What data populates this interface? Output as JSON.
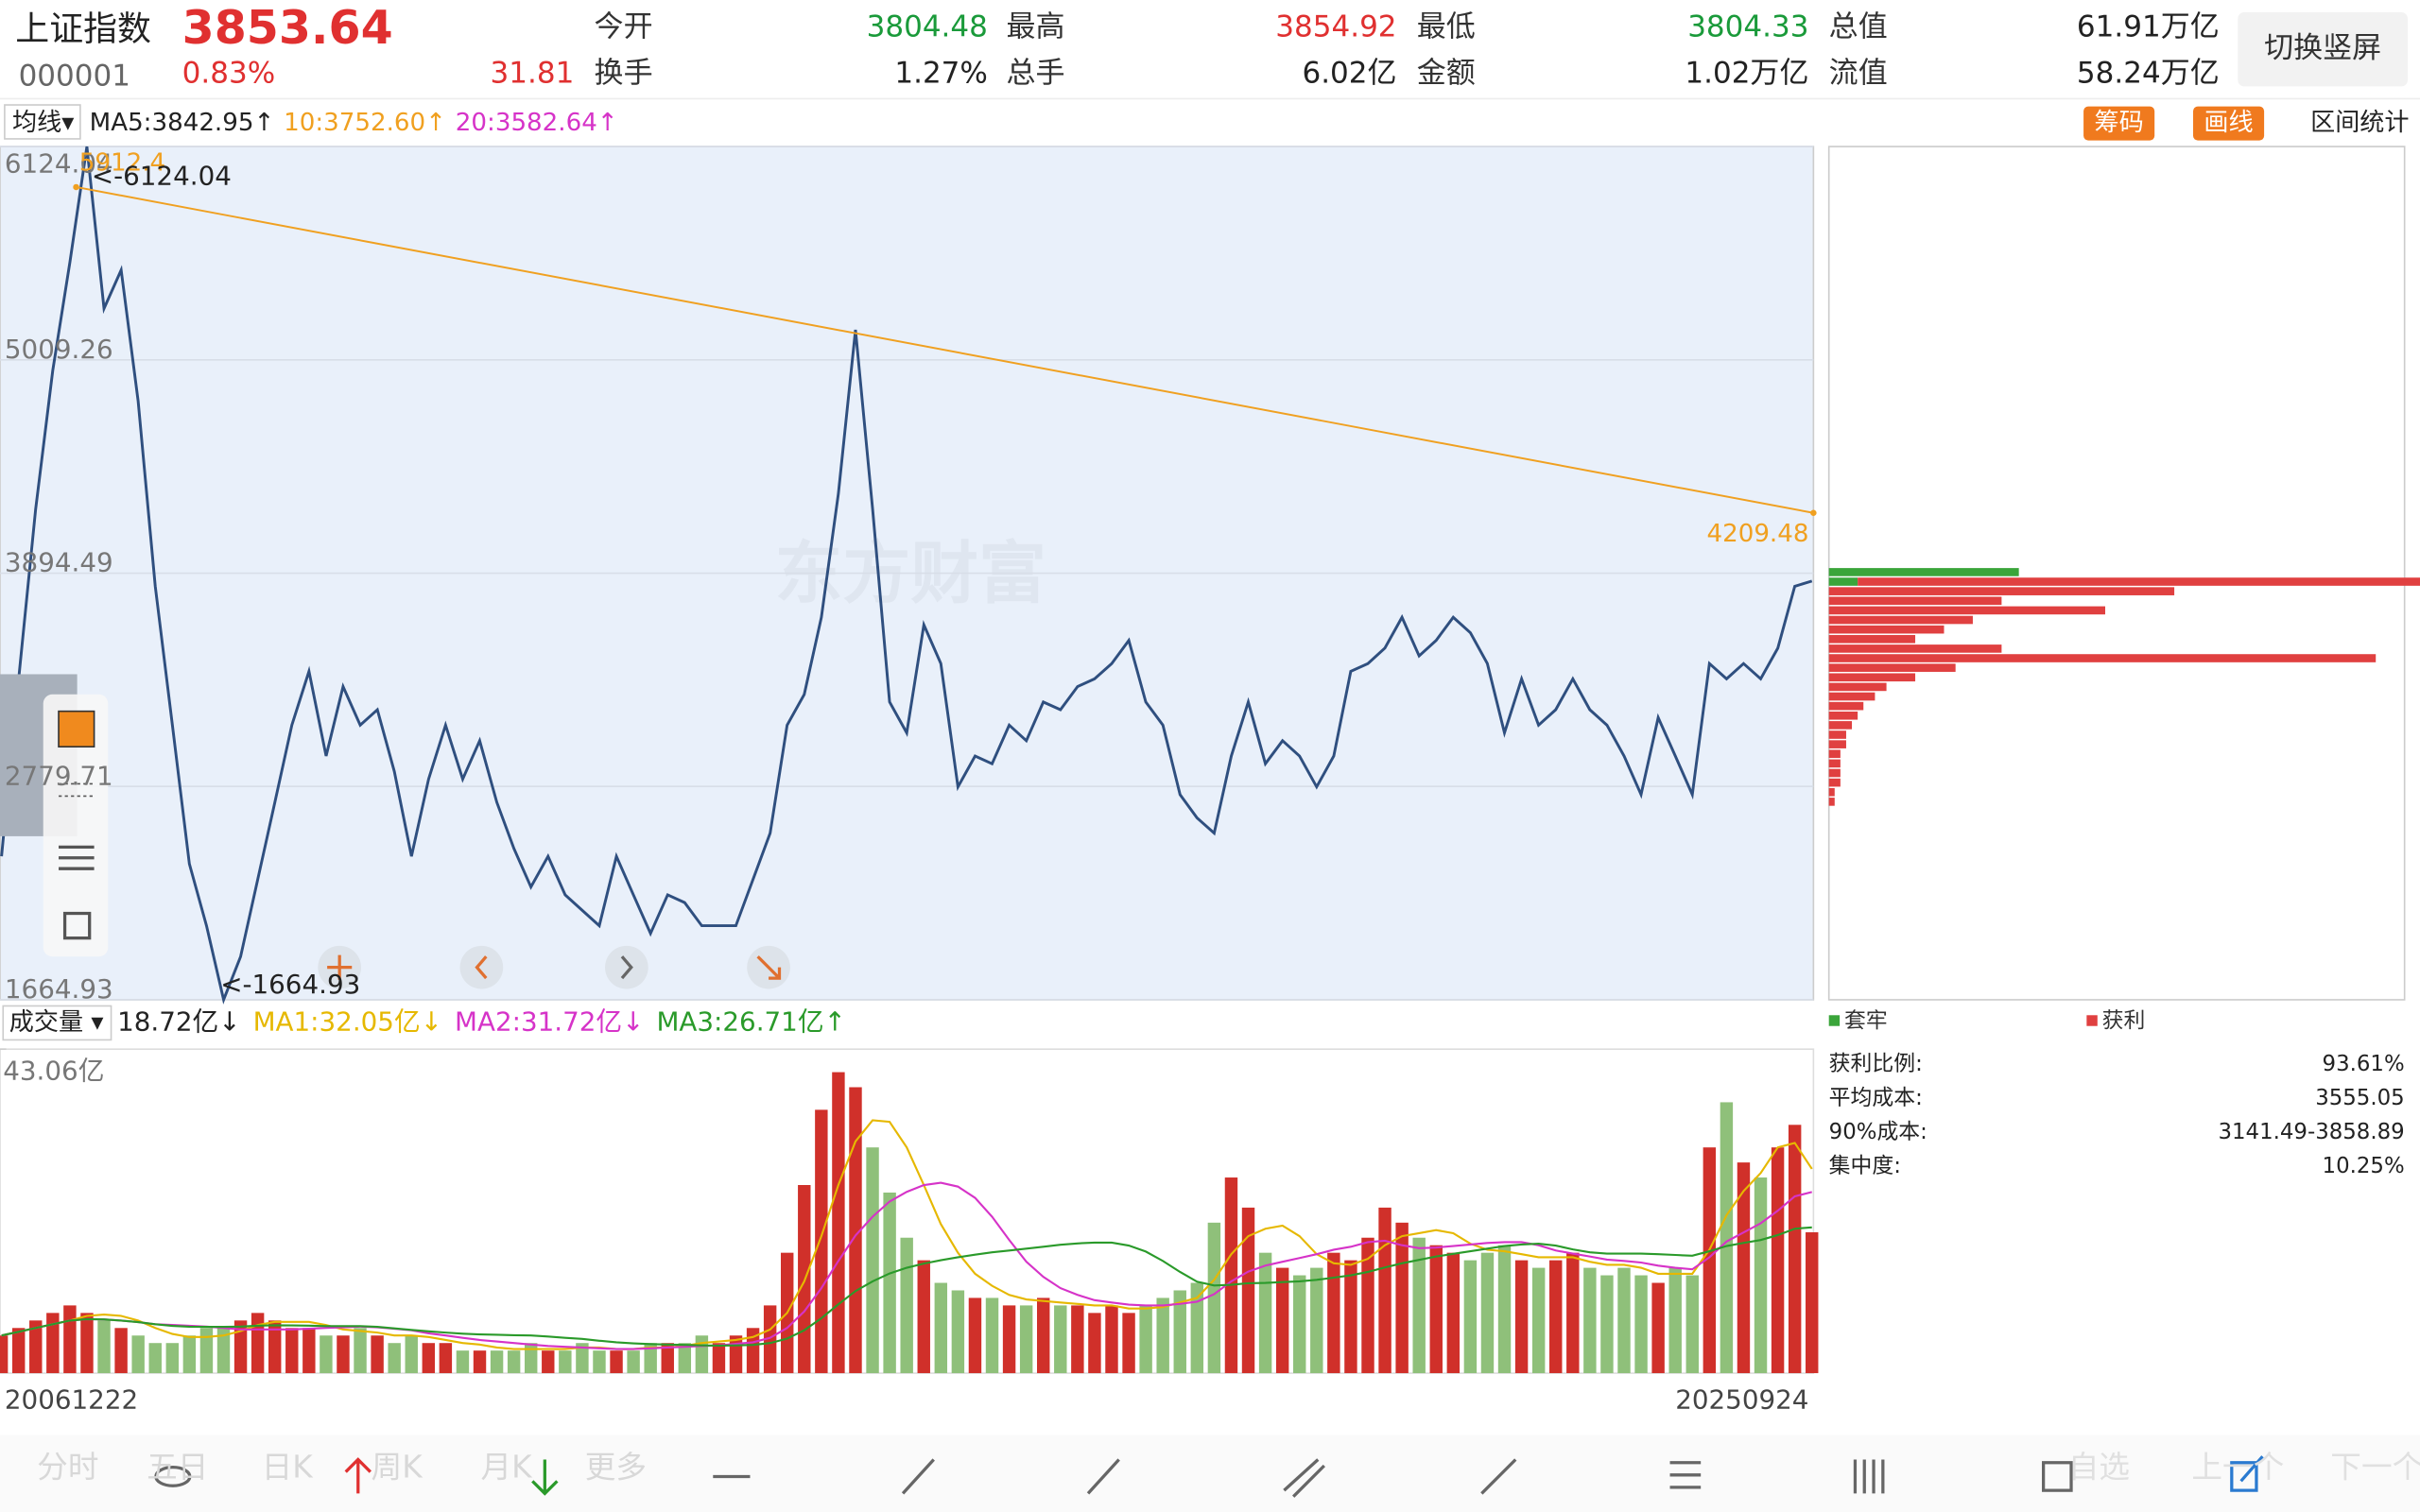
{
  "header": {
    "name": "上证指数",
    "price": "3853.64",
    "code": "000001",
    "change_pct": "0.83%",
    "change": "31.81",
    "price_color": "#e03030",
    "stats": [
      {
        "label": "今开",
        "value": "3804.48",
        "color": "#1a9a3a"
      },
      {
        "label": "最高",
        "value": "3854.92",
        "color": "#e03030"
      },
      {
        "label": "最低",
        "value": "3804.33",
        "color": "#1a9a3a"
      },
      {
        "label": "总值",
        "value": "61.91万亿",
        "color": "#222222"
      },
      {
        "label": "换手",
        "value": "1.27%",
        "color": "#222222"
      },
      {
        "label": "总手",
        "value": "6.02亿",
        "color": "#222222"
      },
      {
        "label": "金额",
        "value": "1.02万亿",
        "color": "#222222"
      },
      {
        "label": "流值",
        "value": "58.24万亿",
        "color": "#222222"
      }
    ],
    "button": "切换竖屏"
  },
  "toolbar": {
    "ma_label": "均线▾",
    "items": [
      {
        "text": "MA5:3842.95↑",
        "color": "#222222"
      },
      {
        "text": "10:3752.60↑",
        "color": "#f0a020"
      },
      {
        "text": "20:3582.64↑",
        "color": "#d633c8"
      }
    ],
    "buttons": [
      "筹码",
      "画线"
    ],
    "stats_button": "区间统计"
  },
  "watermark": "东方财富",
  "chart_data": [
    {
      "type": "line",
      "color": "#2f4f7f",
      "fill": "#e9f0fa",
      "grid": true,
      "ylim": [
        1664.93,
        6124.04
      ],
      "yticks": [
        1664.93,
        2779.71,
        3894.49,
        5009.26,
        6124.04
      ],
      "x_labels": [
        "20061222",
        "20250924"
      ],
      "values": [
        2415,
        3342,
        4229,
        4955,
        5520,
        6124.04,
        5277,
        5479,
        4794,
        3826,
        3100,
        2375,
        2052,
        1664.93,
        1891,
        2294,
        2697,
        3100,
        3382,
        2939,
        3302,
        3100,
        3181,
        2858,
        2415,
        2818,
        3100,
        2818,
        3019,
        2697,
        2455,
        2254,
        2415,
        2213,
        2133,
        2052,
        2415,
        2213,
        2012,
        2213,
        2173,
        2052,
        2052,
        2052,
        2294,
        2536,
        3100,
        3261,
        3664,
        4309,
        5166,
        4229,
        3221,
        3060,
        3624,
        3422,
        2778,
        2939,
        2899,
        3100,
        3019,
        3221,
        3181,
        3302,
        3342,
        3422,
        3543,
        3221,
        3100,
        2737,
        2616,
        2536,
        2939,
        3221,
        2899,
        3019,
        2939,
        2778,
        2939,
        3382,
        3422,
        3503,
        3664,
        3462,
        3543,
        3664,
        3583,
        3422,
        3060,
        3342,
        3100,
        3181,
        3342,
        3181,
        3100,
        2939,
        2737,
        3140,
        2939,
        2737,
        3422,
        3342,
        3422,
        3342,
        3503,
        3826,
        3853.64
      ],
      "max_label": "<-6124.04",
      "min_label": "<-1664.93",
      "trendline": {
        "color": "#f0a020",
        "values": [
          5912.4,
          4209.48
        ]
      }
    },
    {
      "type": "bar",
      "up_color": "#d0302a",
      "down_color": "#8fc07a",
      "ylim": [
        0,
        43.06
      ],
      "yticks": [
        {
          "value": 43.06,
          "label": "43.06亿"
        }
      ],
      "legend_title": "成交量 ▾",
      "legend": [
        {
          "text": "18.72亿↓",
          "color": "#222222"
        },
        {
          "text": "MA1:32.05亿↓",
          "color": "#e6b800"
        },
        {
          "text": "MA2:31.72亿↓",
          "color": "#d633c8"
        },
        {
          "text": "MA3:26.71亿↑",
          "color": "#2a9a2a"
        }
      ],
      "values": [
        5,
        6,
        7,
        8,
        9,
        8,
        7,
        6,
        5,
        4,
        4,
        5,
        6,
        6,
        7,
        8,
        7,
        6,
        6,
        5,
        5,
        6,
        5,
        4,
        5,
        4,
        4,
        3,
        3,
        3,
        3,
        4,
        3,
        3,
        4,
        3,
        3,
        3,
        4,
        4,
        4,
        5,
        4,
        5,
        6,
        9,
        16,
        25,
        35,
        40,
        38,
        30,
        24,
        18,
        15,
        12,
        11,
        10,
        10,
        9,
        9,
        10,
        9,
        9,
        8,
        9,
        8,
        9,
        10,
        11,
        12,
        20,
        26,
        22,
        16,
        14,
        13,
        14,
        16,
        15,
        18,
        22,
        20,
        18,
        17,
        16,
        15,
        16,
        17,
        15,
        14,
        15,
        16,
        14,
        13,
        14,
        13,
        12,
        14,
        13,
        30,
        36,
        28,
        26,
        30,
        33,
        18.72
      ]
    },
    {
      "type": "hbar",
      "xlim": [
        0,
        100
      ],
      "y": [
        3900,
        3850,
        3800,
        3750,
        3700,
        3650,
        3600,
        3550,
        3500,
        3450,
        3400,
        3350,
        3300,
        3250,
        3200,
        3150,
        3100,
        3050,
        3000,
        2950,
        2900,
        2850,
        2800,
        2750,
        2700
      ],
      "series": [
        {
          "name": "套牢",
          "color": "#3aa53a",
          "values": [
            33,
            5,
            0,
            0,
            0,
            0,
            0,
            0,
            0,
            0,
            0,
            0,
            0,
            0,
            0,
            0,
            0,
            0,
            0,
            0,
            0,
            0,
            0,
            0,
            0
          ]
        },
        {
          "name": "获利",
          "color": "#e04040",
          "values": [
            0,
            100,
            60,
            30,
            48,
            25,
            20,
            15,
            30,
            95,
            22,
            15,
            10,
            8,
            6,
            5,
            4,
            3,
            3,
            2,
            2,
            2,
            2,
            1,
            1
          ]
        }
      ],
      "stats": [
        {
          "label": "获利比例:",
          "value": "93.61%"
        },
        {
          "label": "平均成本:",
          "value": "3555.05"
        },
        {
          "label": "90%成本:",
          "value": "3141.49-3858.89"
        },
        {
          "label": "集中度:",
          "value": "10.25%"
        }
      ]
    }
  ],
  "bottom_bar": {
    "tabs": [
      "分时",
      "五日",
      "日K",
      "周K",
      "月K",
      "更多"
    ],
    "right": [
      "自选",
      "上一个",
      "下一个"
    ]
  }
}
